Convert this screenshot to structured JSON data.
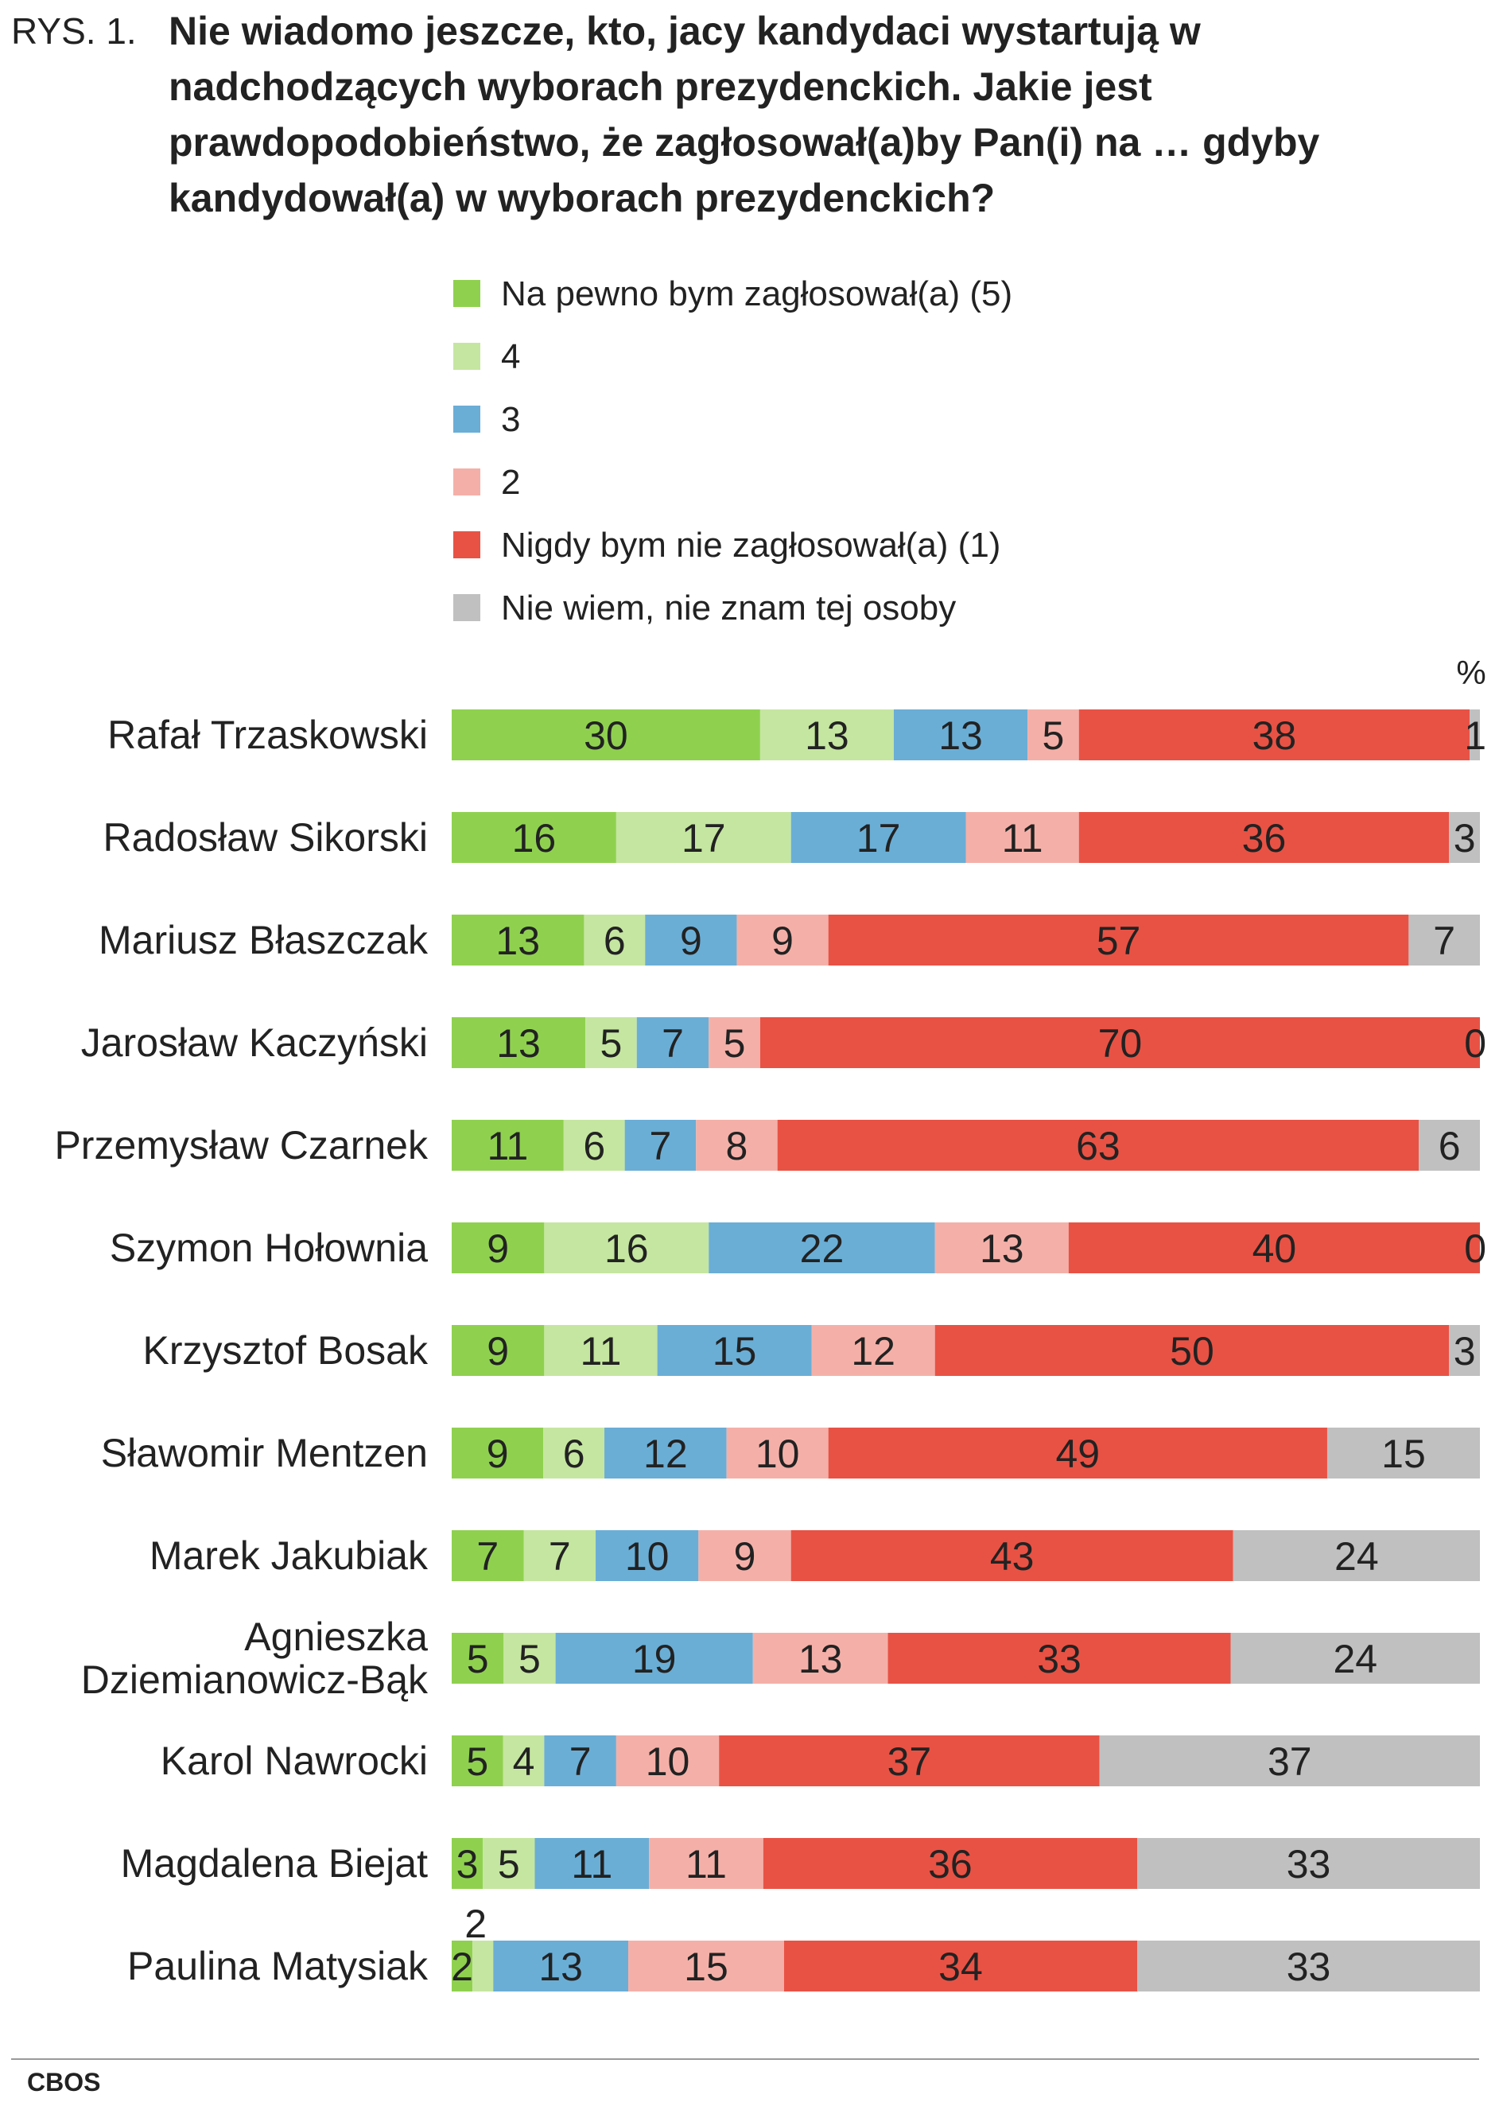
{
  "figure": {
    "prefix": "RYS. 1.",
    "title": "Nie wiadomo jeszcze, kto, jacy kandydaci wystartują w nadchodzących wyborach prezydenckich. Jakie jest prawdopodobieństwo, że zagłosował(a)by Pan(i) na … gdyby kandydował(a) w wyborach prezydenckich?",
    "source": "CBOS"
  },
  "legend": [
    {
      "label": "Na pewno bym zagłosował(a) (5)",
      "color": "#8fd14f"
    },
    {
      "label": "4",
      "color": "#c5e6a0"
    },
    {
      "label": "3",
      "color": "#6aaed6"
    },
    {
      "label": "2",
      "color": "#f4b0a8"
    },
    {
      "label": "Nigdy bym nie zagłosował(a) (1)",
      "color": "#e85244"
    },
    {
      "label": "Nie wiem, nie znam tej osoby",
      "color": "#c0c0c0"
    }
  ],
  "chart_data": {
    "type": "bar",
    "orientation": "horizontal",
    "stacked": true,
    "unit": "%",
    "legend_position": "top",
    "grid": false,
    "categories": [
      [
        "Rafał Trzaskowski"
      ],
      [
        "Radosław Sikorski"
      ],
      [
        "Mariusz Błaszczak"
      ],
      [
        "Jarosław Kaczyński"
      ],
      [
        "Przemysław Czarnek"
      ],
      [
        "Szymon Hołownia"
      ],
      [
        "Krzysztof Bosak"
      ],
      [
        "Sławomir Mentzen"
      ],
      [
        "Marek Jakubiak"
      ],
      [
        "Agnieszka",
        "Dziemianowicz-Bąk"
      ],
      [
        "Karol Nawrocki"
      ],
      [
        "Magdalena Biejat"
      ],
      [
        "Paulina Matysiak"
      ]
    ],
    "series": [
      {
        "name": "Na pewno bym zagłosował(a) (5)",
        "color": "#8fd14f",
        "values": [
          30,
          16,
          13,
          13,
          11,
          9,
          9,
          9,
          7,
          5,
          5,
          3,
          2
        ]
      },
      {
        "name": "4",
        "color": "#c5e6a0",
        "values": [
          13,
          17,
          6,
          5,
          6,
          16,
          11,
          6,
          7,
          5,
          4,
          5,
          2
        ]
      },
      {
        "name": "3",
        "color": "#6aaed6",
        "values": [
          13,
          17,
          9,
          7,
          7,
          22,
          15,
          12,
          10,
          19,
          7,
          11,
          13
        ]
      },
      {
        "name": "2",
        "color": "#f4b0a8",
        "values": [
          5,
          11,
          9,
          5,
          8,
          13,
          12,
          10,
          9,
          13,
          10,
          11,
          15
        ]
      },
      {
        "name": "Nigdy bym nie zagłosował(a) (1)",
        "color": "#e85244",
        "values": [
          38,
          36,
          57,
          70,
          63,
          40,
          50,
          49,
          43,
          33,
          37,
          36,
          34
        ]
      },
      {
        "name": "Nie wiem, nie znam tej osoby",
        "color": "#c0c0c0",
        "values": [
          1,
          3,
          7,
          0,
          6,
          0,
          3,
          15,
          24,
          24,
          37,
          33,
          33
        ]
      }
    ]
  }
}
